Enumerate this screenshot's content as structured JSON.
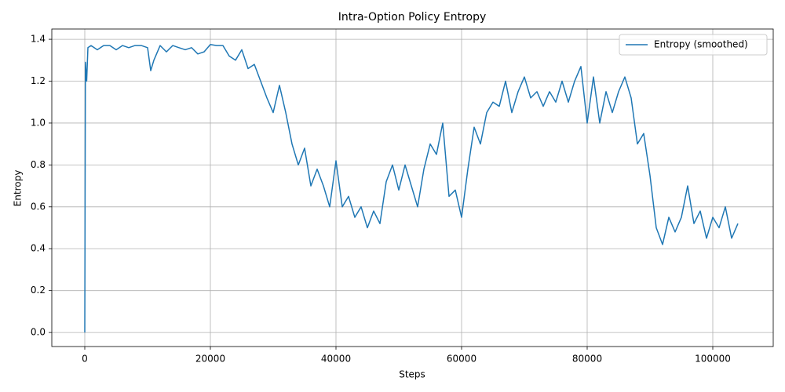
{
  "chart_data": {
    "type": "line",
    "title": "Intra-Option Policy Entropy",
    "x_label": "Steps",
    "y_label": "Entropy",
    "x": [
      0,
      100,
      300,
      500,
      1000,
      2000,
      3000,
      4000,
      5000,
      6000,
      7000,
      8000,
      9000,
      10000,
      10500,
      11000,
      12000,
      13000,
      14000,
      15000,
      16000,
      17000,
      18000,
      19000,
      20000,
      21000,
      22000,
      23000,
      24000,
      25000,
      26000,
      27000,
      28000,
      29000,
      30000,
      31000,
      32000,
      33000,
      34000,
      35000,
      36000,
      37000,
      38000,
      39000,
      40000,
      41000,
      42000,
      43000,
      44000,
      45000,
      46000,
      47000,
      48000,
      49000,
      50000,
      51000,
      52000,
      53000,
      54000,
      55000,
      56000,
      57000,
      58000,
      59000,
      60000,
      61000,
      62000,
      63000,
      64000,
      65000,
      66000,
      67000,
      68000,
      69000,
      70000,
      71000,
      72000,
      73000,
      74000,
      75000,
      76000,
      77000,
      78000,
      79000,
      80000,
      81000,
      82000,
      83000,
      84000,
      85000,
      86000,
      87000,
      88000,
      89000,
      90000,
      91000,
      92000,
      93000,
      94000,
      95000,
      96000,
      97000,
      98000,
      99000,
      100000,
      101000,
      102000,
      103000,
      104000
    ],
    "series": [
      {
        "name": "Entropy (smoothed)",
        "color": "#1f77b4",
        "values": [
          0.0,
          1.29,
          1.2,
          1.36,
          1.37,
          1.35,
          1.37,
          1.37,
          1.35,
          1.37,
          1.36,
          1.37,
          1.37,
          1.36,
          1.25,
          1.3,
          1.37,
          1.34,
          1.37,
          1.36,
          1.35,
          1.36,
          1.33,
          1.34,
          1.375,
          1.37,
          1.37,
          1.32,
          1.3,
          1.35,
          1.26,
          1.28,
          1.2,
          1.12,
          1.05,
          1.18,
          1.05,
          0.9,
          0.8,
          0.88,
          0.7,
          0.78,
          0.7,
          0.6,
          0.82,
          0.6,
          0.65,
          0.55,
          0.6,
          0.5,
          0.58,
          0.52,
          0.72,
          0.8,
          0.68,
          0.8,
          0.7,
          0.6,
          0.78,
          0.9,
          0.85,
          1.0,
          0.65,
          0.68,
          0.55,
          0.78,
          0.98,
          0.9,
          1.05,
          1.1,
          1.08,
          1.2,
          1.05,
          1.15,
          1.22,
          1.12,
          1.15,
          1.08,
          1.15,
          1.1,
          1.2,
          1.1,
          1.2,
          1.27,
          1.0,
          1.22,
          1.0,
          1.15,
          1.05,
          1.15,
          1.22,
          1.12,
          0.9,
          0.95,
          0.75,
          0.5,
          0.42,
          0.55,
          0.48,
          0.55,
          0.7,
          0.52,
          0.58,
          0.45,
          0.55,
          0.5,
          0.6,
          0.45,
          0.52
        ]
      }
    ],
    "xlim": [
      -5250,
      109625
    ],
    "ylim": [
      -0.067,
      1.449
    ],
    "xticks": [
      0,
      20000,
      40000,
      60000,
      80000,
      100000
    ],
    "yticks": [
      {
        "value": 0,
        "label": "0.0"
      },
      0.2,
      0.4,
      0.6,
      0.8,
      {
        "value": 1,
        "label": "1.0"
      },
      1.2,
      1.4
    ],
    "grid": true,
    "legend": "upper right"
  }
}
